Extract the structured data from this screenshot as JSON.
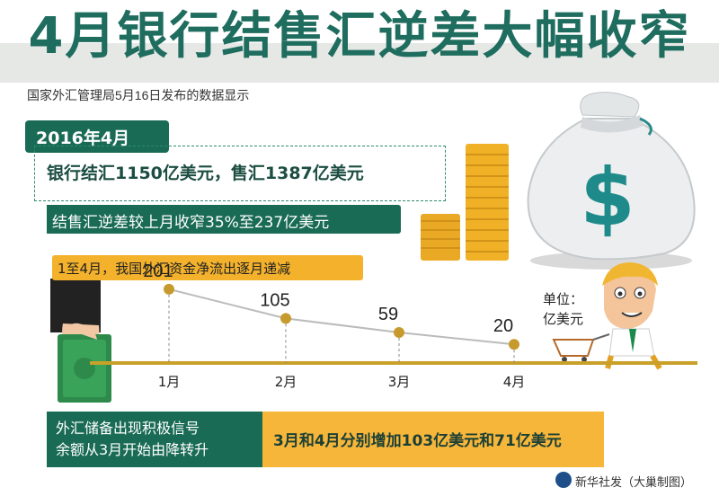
{
  "title": "4月银行结售汇逆差大幅收窄",
  "subtitle": "国家外汇管理局5月16日发布的数据显示",
  "period": "2016年4月",
  "stats": {
    "line1": "银行结汇1150亿美元，售汇1387亿美元",
    "line2": "结售汇逆差较上月收窄35%至237亿美元"
  },
  "banner": "1至4月，我国外汇资金净流出逐月递减",
  "unit": {
    "line1": "单位：",
    "line2": "亿美元"
  },
  "chart_data": {
    "type": "line",
    "categories": [
      "1月",
      "2月",
      "3月",
      "4月"
    ],
    "values": [
      201,
      105,
      59,
      20
    ],
    "data_labels": [
      "201",
      "105",
      "59",
      "20"
    ],
    "title": "",
    "xlabel": "",
    "ylabel": "",
    "ylim": [
      0,
      230
    ],
    "grid": false
  },
  "bottom": {
    "left_line1": "外汇储备出现积极信号",
    "left_line2": "余额从3月开始由降转升",
    "right": "3月和4月分别增加103亿美元和71亿美元"
  },
  "credit": "新华社发（大巢制图）",
  "colors": {
    "title": "#1f6d5e",
    "teal": "#1a6b55",
    "orange": "#f3b12c",
    "axis": "#c8a02a",
    "point": "#c79a2e"
  }
}
